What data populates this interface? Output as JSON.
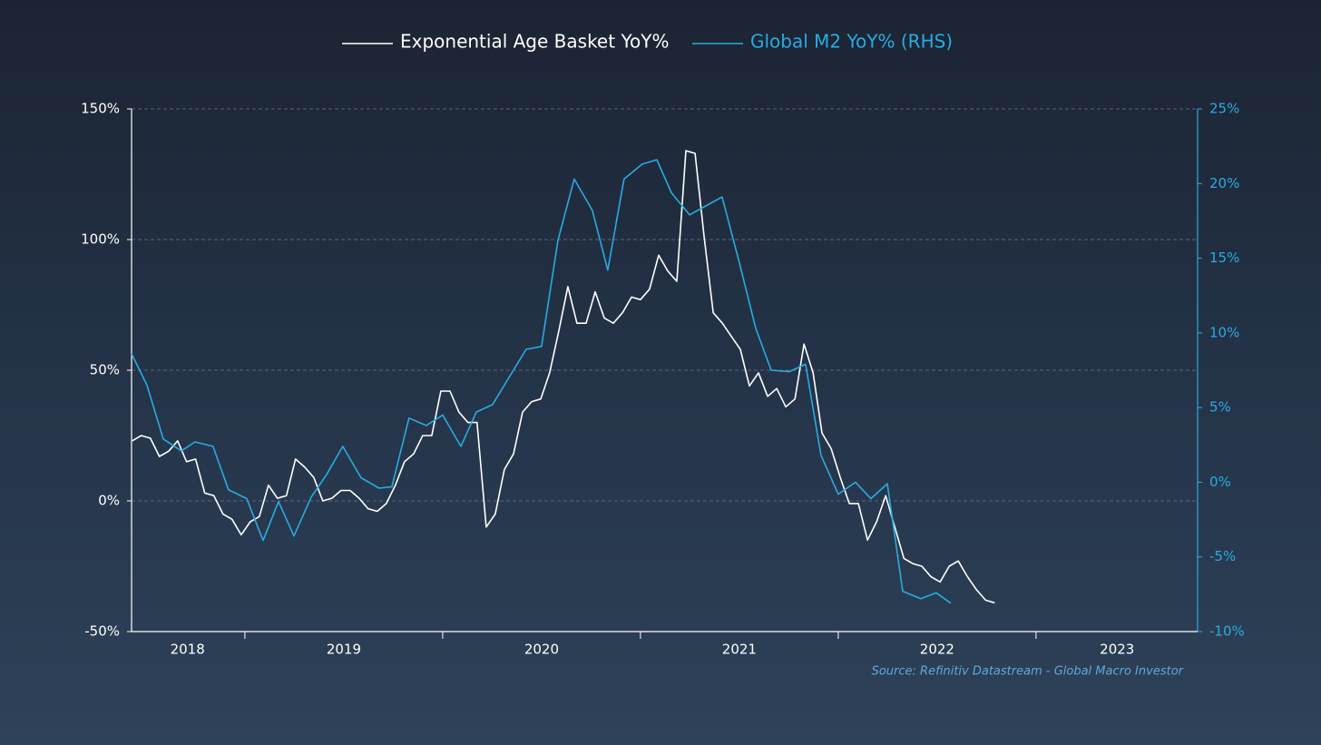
{
  "chart_data": {
    "type": "line",
    "source": "Source: Refinitiv Datastream - Global Macro Investor",
    "xlim": [
      2018.427,
      2023.817
    ],
    "xticks": [
      {
        "value": 2018.71,
        "label": "2018"
      },
      {
        "value": 2019.5,
        "label": "2019"
      },
      {
        "value": 2020.5,
        "label": "2020"
      },
      {
        "value": 2021.5,
        "label": "2021"
      },
      {
        "value": 2022.5,
        "label": "2022"
      },
      {
        "value": 2023.41,
        "label": "2023"
      }
    ],
    "xtick_marks": [
      2019,
      2020,
      2021,
      2022,
      2023
    ],
    "ylim": [
      -50,
      150
    ],
    "yticks": [
      {
        "value": -50,
        "label": "-50%"
      },
      {
        "value": 0,
        "label": "0%"
      },
      {
        "value": 50,
        "label": "50%"
      },
      {
        "value": 100,
        "label": "100%"
      },
      {
        "value": 150,
        "label": "150%"
      }
    ],
    "y2lim": [
      -10,
      25
    ],
    "y2ticks": [
      {
        "value": -10,
        "label": "-10%"
      },
      {
        "value": -5,
        "label": "-5%"
      },
      {
        "value": 0,
        "label": "0%"
      },
      {
        "value": 5,
        "label": "5%"
      },
      {
        "value": 10,
        "label": "10%"
      },
      {
        "value": 15,
        "label": "15%"
      },
      {
        "value": 20,
        "label": "20%"
      },
      {
        "value": 25,
        "label": "25%"
      }
    ],
    "y2color": "#29abe2",
    "grid": true,
    "legend": "top",
    "series": [
      {
        "name": "Exponential Age Basket YoY%",
        "color": "#ffffff",
        "x": [
          2018.43,
          2018.476,
          2018.522,
          2018.568,
          2018.614,
          2018.66,
          2018.705,
          2018.751,
          2018.797,
          2018.843,
          2018.889,
          2018.935,
          2018.981,
          2019.027,
          2019.073,
          2019.119,
          2019.164,
          2019.21,
          2019.256,
          2019.302,
          2019.348,
          2019.394,
          2019.44,
          2019.486,
          2019.532,
          2019.578,
          2019.623,
          2019.669,
          2019.715,
          2019.761,
          2019.807,
          2019.853,
          2019.899,
          2019.945,
          2019.991,
          2020.037,
          2020.082,
          2020.128,
          2020.174,
          2020.22,
          2020.266,
          2020.312,
          2020.358,
          2020.404,
          2020.45,
          2020.496,
          2020.541,
          2020.587,
          2020.633,
          2020.679,
          2020.725,
          2020.771,
          2020.817,
          2020.863,
          2020.909,
          2020.955,
          2021.0,
          2021.046,
          2021.092,
          2021.138,
          2021.184,
          2021.23,
          2021.276,
          2021.322,
          2021.368,
          2021.414,
          2021.459,
          2021.505,
          2021.551,
          2021.597,
          2021.643,
          2021.689,
          2021.735,
          2021.781,
          2021.827,
          2021.873,
          2021.918,
          2021.964,
          2022.01,
          2022.056,
          2022.102,
          2022.148,
          2022.194,
          2022.24,
          2022.286,
          2022.332,
          2022.377,
          2022.423,
          2022.469,
          2022.515,
          2022.561,
          2022.607,
          2022.653,
          2022.699,
          2022.745,
          2022.791
        ],
        "values": [
          23,
          25,
          24,
          17,
          19,
          23,
          15,
          16,
          3,
          2,
          -5,
          -7,
          -13,
          -8,
          -6,
          6,
          1,
          2,
          16,
          13,
          9,
          0,
          1,
          4,
          4,
          1,
          -3,
          -4,
          -1,
          6,
          15,
          18,
          25,
          25,
          42,
          42,
          34,
          30,
          30,
          -10,
          -5,
          12,
          18,
          34,
          38,
          39,
          49,
          65,
          82,
          68,
          68,
          80,
          70,
          68,
          72,
          78,
          77,
          81,
          94,
          88,
          84,
          134,
          133,
          101,
          72,
          68,
          63,
          58,
          44,
          49,
          40,
          43,
          36,
          39,
          60,
          49,
          26,
          20,
          9,
          -1,
          -1,
          -15,
          -8,
          2,
          -10,
          -22,
          -24,
          -25,
          -29,
          -31,
          -25,
          -23,
          -29,
          -34,
          -38,
          -39
        ]
      },
      {
        "name": "Global M2 YoY% (RHS)",
        "color": "#29abe2",
        "axis": "y2",
        "x": [
          2018.427,
          2018.505,
          2018.587,
          2018.679,
          2018.748,
          2018.839,
          2018.917,
          2019.009,
          2019.092,
          2019.17,
          2019.248,
          2019.335,
          2019.413,
          2019.495,
          2019.587,
          2019.679,
          2019.743,
          2019.83,
          2019.917,
          2020.0,
          2020.092,
          2020.17,
          2020.252,
          2020.422,
          2020.5,
          2020.583,
          2020.665,
          2020.757,
          2020.835,
          2020.917,
          2021.009,
          2021.083,
          2021.156,
          2021.248,
          2021.33,
          2021.413,
          2021.5,
          2021.583,
          2021.661,
          2021.752,
          2021.835,
          2021.913,
          2022.0,
          2022.087,
          2022.165,
          2022.248,
          2022.326,
          2022.417,
          2022.495,
          2022.569
        ],
        "values": [
          8.6,
          6.5,
          2.9,
          2.1,
          2.7,
          2.4,
          -0.5,
          -1.1,
          -3.9,
          -1.3,
          -3.6,
          -1.0,
          0.5,
          2.4,
          0.3,
          -0.4,
          -0.3,
          4.3,
          3.8,
          4.5,
          2.4,
          4.7,
          5.2,
          8.9,
          9.1,
          16.2,
          20.3,
          18.2,
          14.2,
          20.3,
          21.3,
          21.6,
          19.4,
          17.9,
          18.5,
          19.1,
          14.7,
          10.3,
          7.5,
          7.4,
          7.9,
          1.8,
          -0.8,
          0.0,
          -1.1,
          -0.1,
          -7.3,
          -7.8,
          -7.4,
          -8.1
        ]
      }
    ]
  }
}
